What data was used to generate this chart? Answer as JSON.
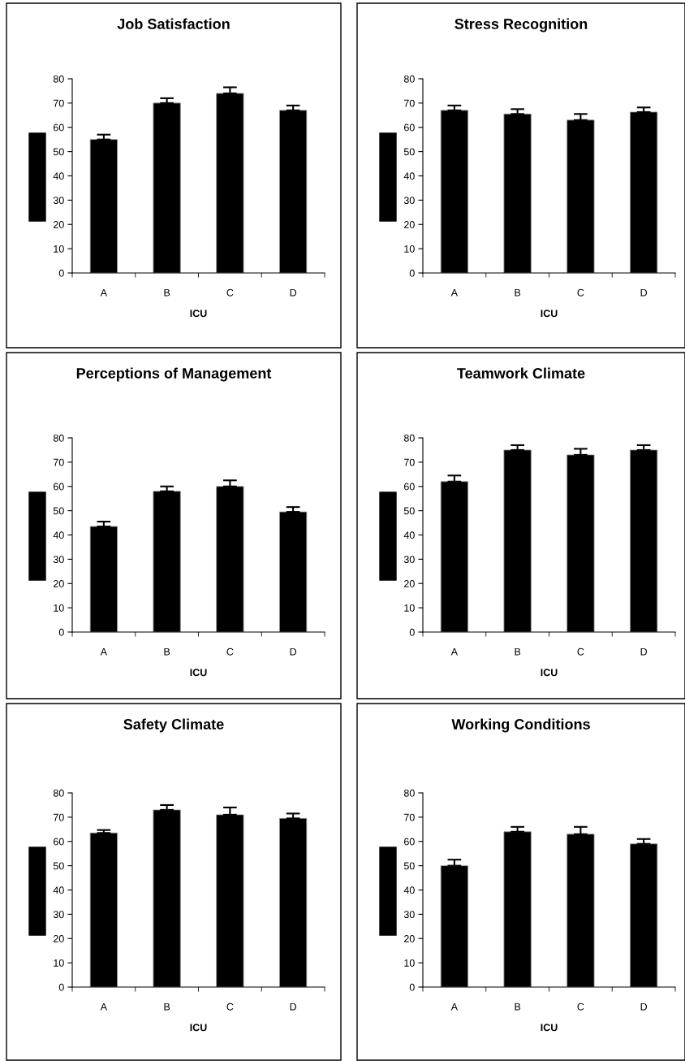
{
  "chart_data": [
    {
      "type": "bar",
      "title": "Job Satisfaction",
      "xlabel": "ICU",
      "categories": [
        "A",
        "B",
        "C",
        "D"
      ],
      "values": [
        55,
        70,
        74,
        67
      ],
      "errors": [
        [
          55,
          57
        ],
        [
          70,
          72
        ],
        [
          74,
          76.5
        ],
        [
          67,
          69
        ]
      ],
      "color": "#000000",
      "ylim": [
        0,
        80
      ],
      "yticks": [
        0,
        10,
        20,
        30,
        40,
        50,
        60,
        70,
        80
      ],
      "grid": false,
      "legend": false
    },
    {
      "type": "bar",
      "title": "Stress Recognition",
      "xlabel": "ICU",
      "categories": [
        "A",
        "B",
        "C",
        "D"
      ],
      "values": [
        67,
        65.5,
        63,
        66.3
      ],
      "errors": [
        [
          67,
          69
        ],
        [
          65.5,
          67.5
        ],
        [
          63,
          65.5
        ],
        [
          66.3,
          68.2
        ]
      ],
      "color": "#000000",
      "ylim": [
        0,
        80
      ],
      "yticks": [
        0,
        10,
        20,
        30,
        40,
        50,
        60,
        70,
        80
      ],
      "grid": false,
      "legend": false
    },
    {
      "type": "bar",
      "title": "Perceptions of Management",
      "xlabel": "ICU",
      "categories": [
        "A",
        "B",
        "C",
        "D"
      ],
      "values": [
        43.5,
        58,
        60,
        49.5
      ],
      "errors": [
        [
          43.5,
          45.5
        ],
        [
          58,
          60
        ],
        [
          60,
          62.5
        ],
        [
          49.5,
          51.5
        ]
      ],
      "color": "#000000",
      "ylim": [
        0,
        80
      ],
      "yticks": [
        0,
        10,
        20,
        30,
        40,
        50,
        60,
        70,
        80
      ],
      "grid": false,
      "legend": false
    },
    {
      "type": "bar",
      "title": "Teamwork Climate",
      "xlabel": "ICU",
      "categories": [
        "A",
        "B",
        "C",
        "D"
      ],
      "values": [
        62,
        75,
        73,
        75
      ],
      "errors": [
        [
          62,
          64.5
        ],
        [
          75,
          77
        ],
        [
          73,
          75.5
        ],
        [
          75,
          77
        ]
      ],
      "color": "#000000",
      "ylim": [
        0,
        80
      ],
      "yticks": [
        0,
        10,
        20,
        30,
        40,
        50,
        60,
        70,
        80
      ],
      "grid": false,
      "legend": false
    },
    {
      "type": "bar",
      "title": "Safety Climate",
      "xlabel": "ICU",
      "categories": [
        "A",
        "B",
        "C",
        "D"
      ],
      "values": [
        63.5,
        73,
        71,
        69.5
      ],
      "errors": [
        [
          63.5,
          64.7
        ],
        [
          73,
          75
        ],
        [
          71,
          74
        ],
        [
          69.5,
          71.5
        ]
      ],
      "color": "#000000",
      "ylim": [
        0,
        80
      ],
      "yticks": [
        0,
        10,
        20,
        30,
        40,
        50,
        60,
        70,
        80
      ],
      "grid": false,
      "legend": false
    },
    {
      "type": "bar",
      "title": "Working Conditions",
      "xlabel": "ICU",
      "categories": [
        "A",
        "B",
        "C",
        "D"
      ],
      "values": [
        50,
        64,
        63,
        59
      ],
      "errors": [
        [
          50,
          52.5
        ],
        [
          64,
          66
        ],
        [
          63,
          66
        ],
        [
          59,
          61
        ]
      ],
      "color": "#000000",
      "ylim": [
        0,
        80
      ],
      "yticks": [
        0,
        10,
        20,
        30,
        40,
        50,
        60,
        70,
        80
      ],
      "grid": false,
      "legend": false
    }
  ]
}
